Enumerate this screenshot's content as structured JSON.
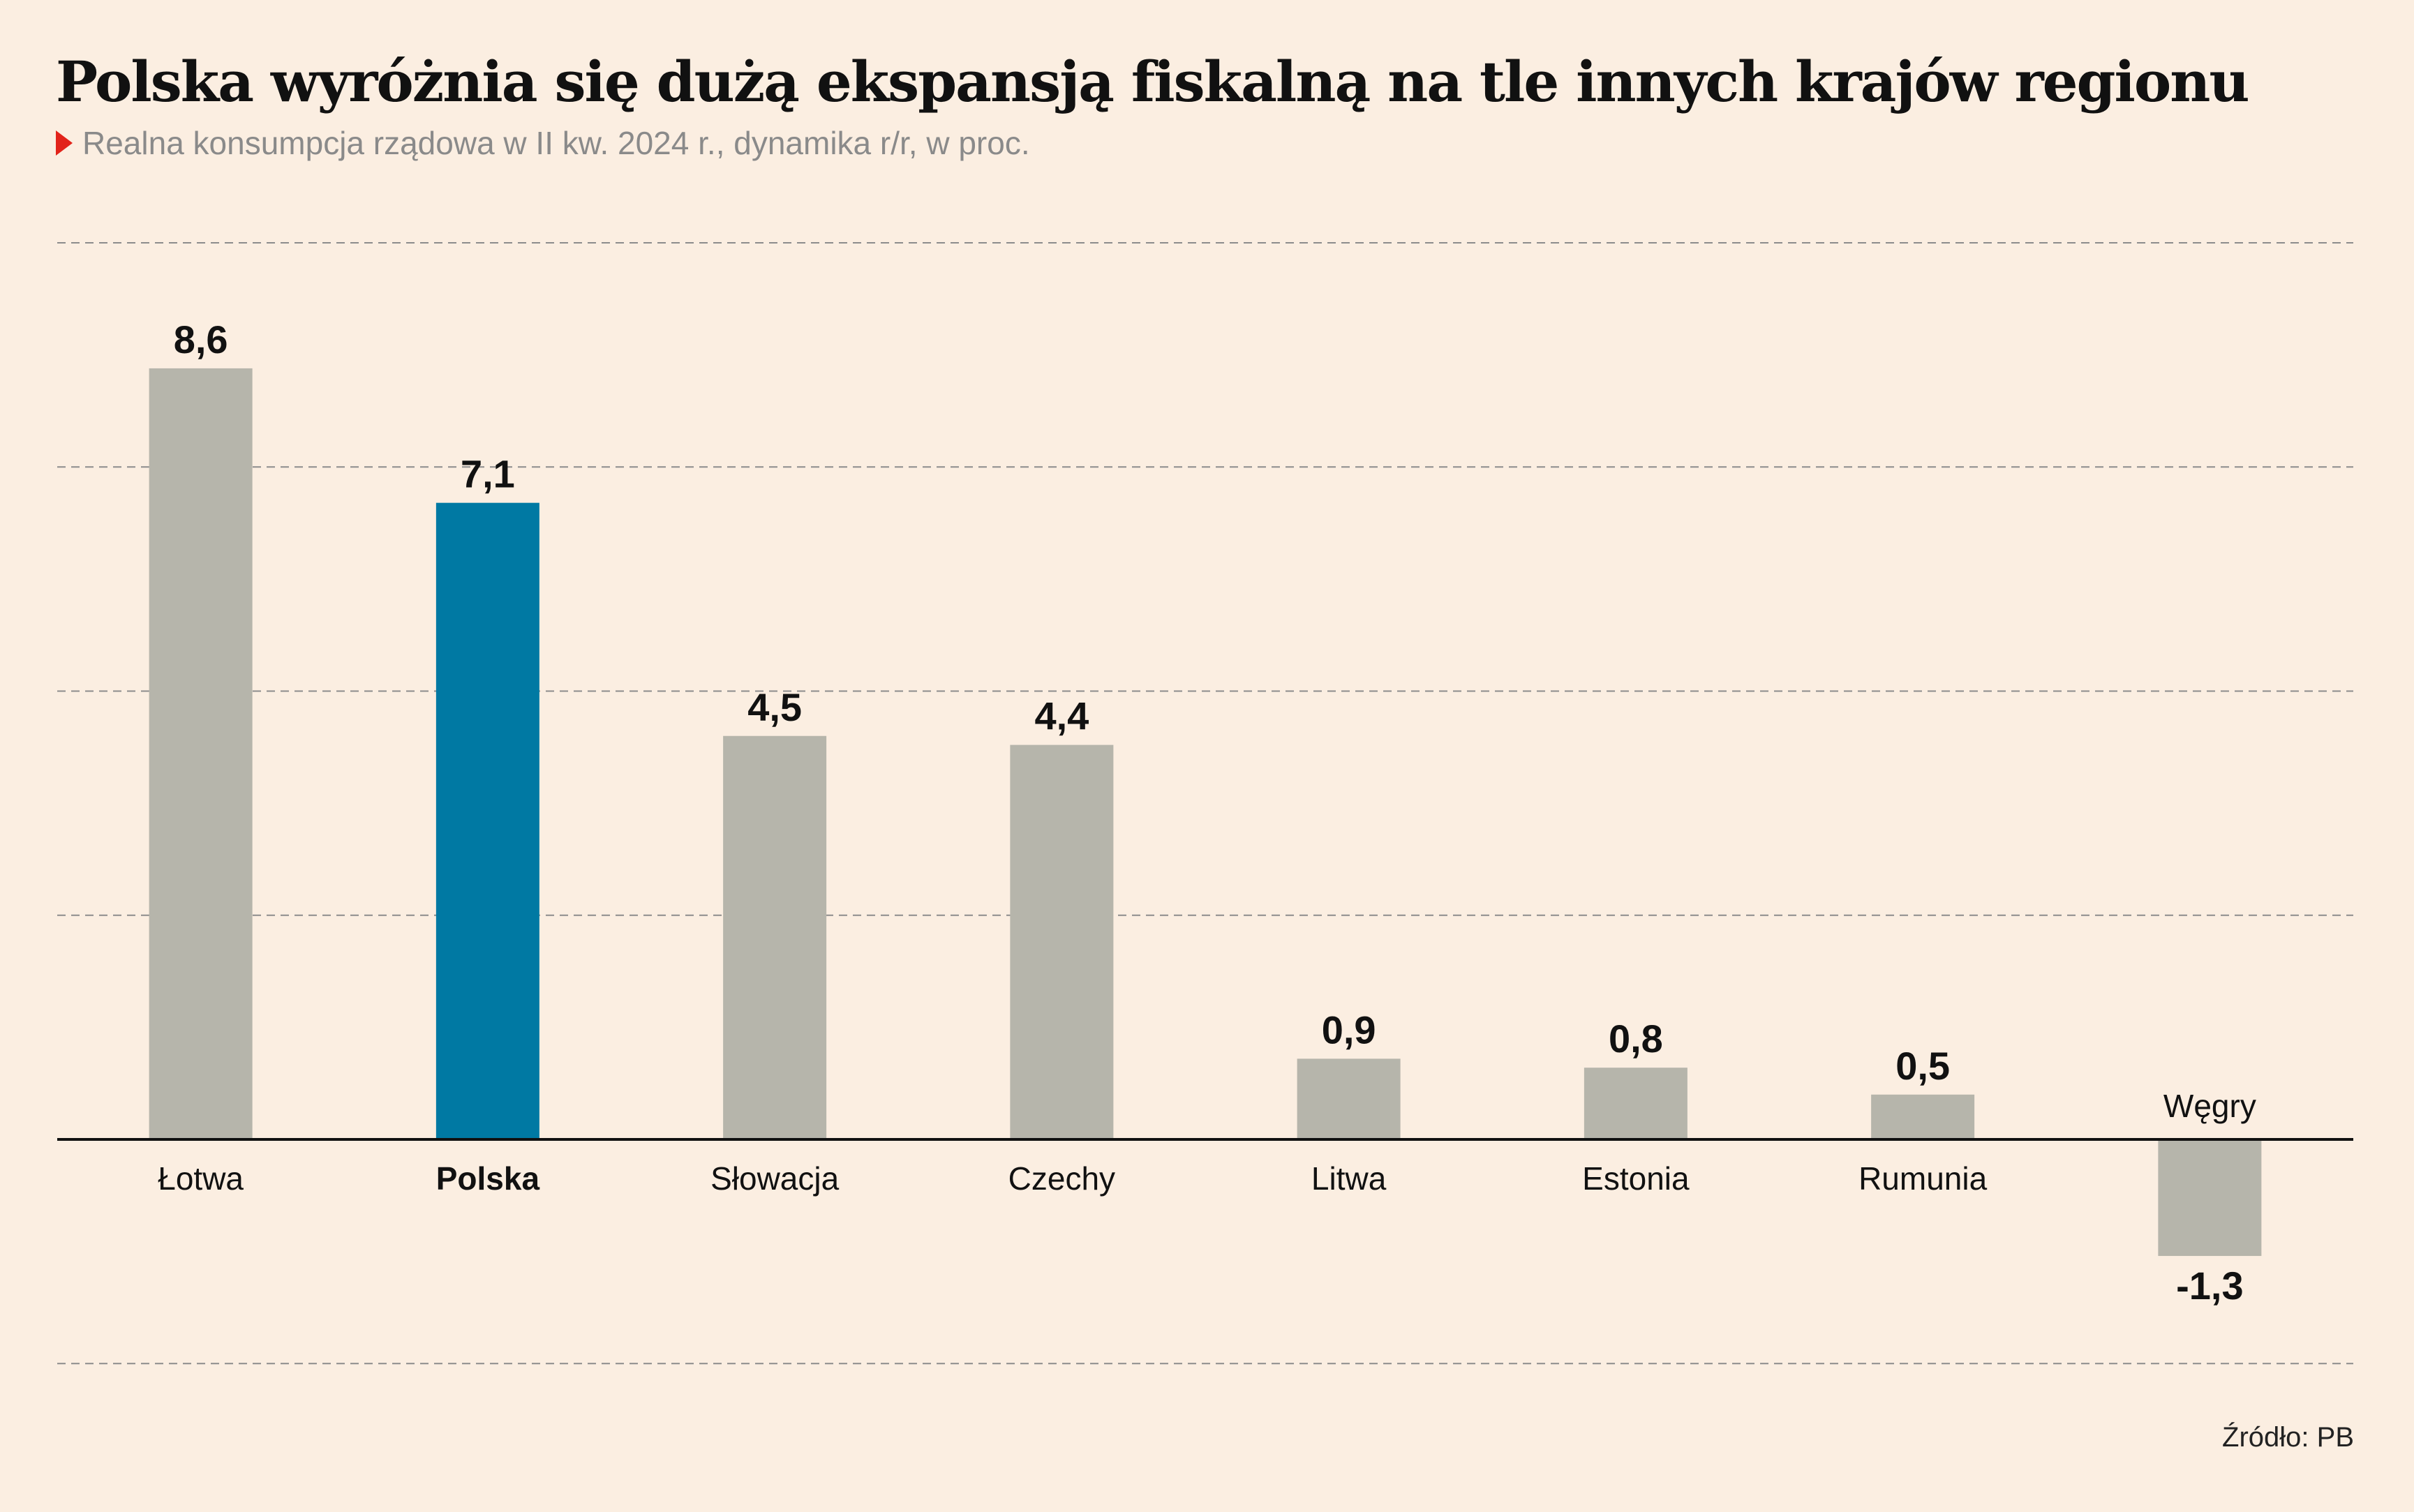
{
  "header": {
    "title": "Polska wyróżnia się dużą ekspansją fiskalną na tle innych krajów regionu",
    "subtitle": "Realna konsumpcja rządowa w II kw. 2024 r., dynamika r/r, w proc."
  },
  "footer": {
    "source": "Źródło: PB"
  },
  "colors": {
    "default_bar": "#b6b5ab",
    "highlight_bar": "#0079a3",
    "gridline": "#8c8c8c",
    "baseline": "#111111",
    "marker": "#e2231a"
  },
  "chart_data": {
    "type": "bar",
    "categories": [
      "Łotwa",
      "Polska",
      "Słowacja",
      "Czechy",
      "Litwa",
      "Estonia",
      "Rumunia",
      "Węgry"
    ],
    "values": [
      8.6,
      7.1,
      4.5,
      4.4,
      0.9,
      0.8,
      0.5,
      -1.3
    ],
    "value_labels": [
      "8,6",
      "7,1",
      "4,5",
      "4,4",
      "0,9",
      "0,8",
      "0,5",
      "-1,3"
    ],
    "highlight": "Polska",
    "ylim": [
      -2.5,
      10
    ],
    "gridlines": [
      -2.5,
      2.5,
      5,
      7.5,
      10
    ],
    "grid": true,
    "legend": "none"
  }
}
